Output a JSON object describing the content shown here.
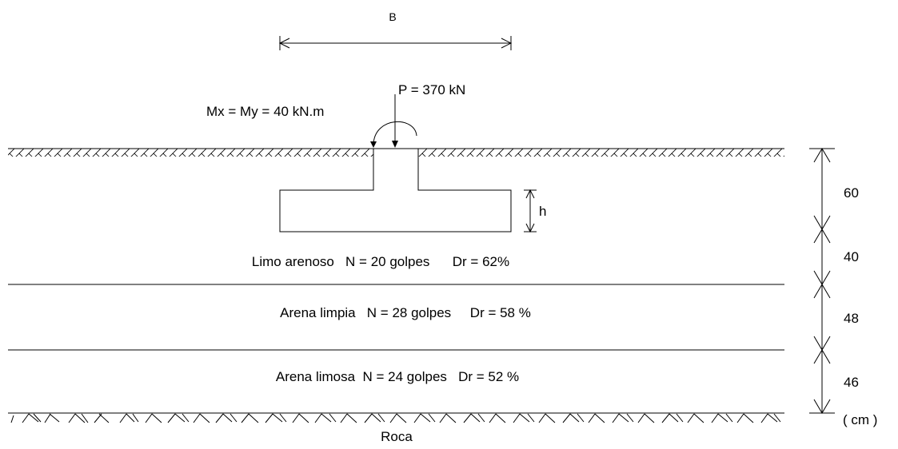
{
  "labels": {
    "width_label": "B",
    "load_label": "P = 370 kN",
    "moment_label": "Mx = My = 40 kN.m",
    "thickness_label": "h",
    "units_label": "( cm )",
    "rock_label": "Roca"
  },
  "layers": [
    {
      "description": "Limo arenoso   N = 20 golpes      Dr = 62%"
    },
    {
      "description": "Arena limpia   N = 28 golpes     Dr = 58 %"
    },
    {
      "description": "Arena limosa  N = 24 golpes   Dr = 52 %"
    }
  ],
  "depths": [
    "60",
    "40",
    "48",
    "46"
  ],
  "colors": {
    "ink": "#000000",
    "background": "#ffffff"
  }
}
